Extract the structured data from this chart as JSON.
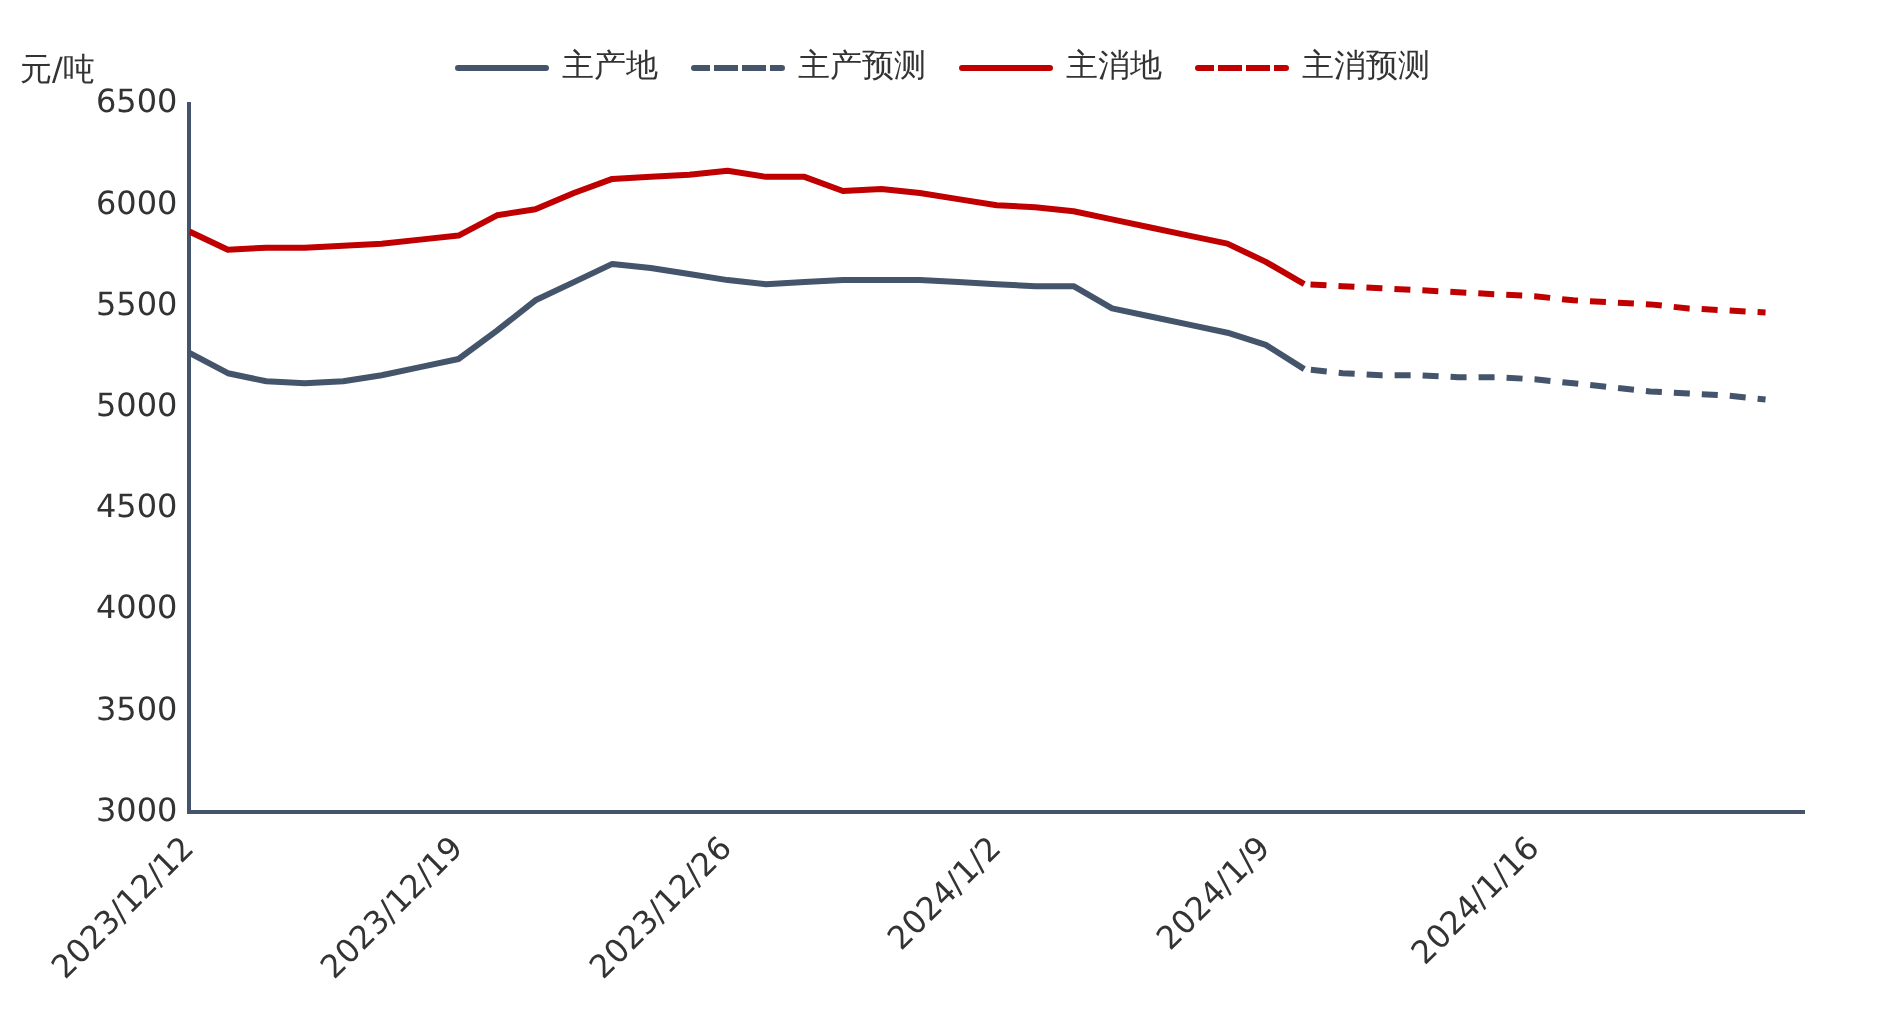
{
  "chart_data": {
    "type": "line",
    "ylabel": "元/吨",
    "legend": "top",
    "grid": false,
    "marker": "none",
    "xlim": [
      "2023-12-12",
      "2024-01-23"
    ],
    "xticks": [
      {
        "value": "2023-12-12",
        "label": "2023/12/12"
      },
      {
        "value": "2023-12-19",
        "label": "2023/12/19"
      },
      {
        "value": "2023-12-26",
        "label": "2023/12/26"
      },
      {
        "value": "2024-01-02",
        "label": "2024/1/2"
      },
      {
        "value": "2024-01-09",
        "label": "2024/1/9"
      },
      {
        "value": "2024-01-16",
        "label": "2024/1/16"
      }
    ],
    "ylim": [
      3000,
      6500
    ],
    "yticks": [
      3000,
      3500,
      4000,
      4500,
      5000,
      5500,
      6000,
      6500
    ],
    "series": [
      {
        "name": "主产地",
        "color": "#44546a",
        "line_style": "solid",
        "x": [
          "2023-12-12",
          "2023-12-13",
          "2023-12-14",
          "2023-12-15",
          "2023-12-16",
          "2023-12-17",
          "2023-12-18",
          "2023-12-19",
          "2023-12-20",
          "2023-12-21",
          "2023-12-22",
          "2023-12-23",
          "2023-12-24",
          "2023-12-25",
          "2023-12-26",
          "2023-12-27",
          "2023-12-28",
          "2023-12-29",
          "2023-12-30",
          "2023-12-31",
          "2024-01-01",
          "2024-01-02",
          "2024-01-03",
          "2024-01-04",
          "2024-01-05",
          "2024-01-06",
          "2024-01-07",
          "2024-01-08",
          "2024-01-09",
          "2024-01-10"
        ],
        "values": [
          5270,
          5170,
          5130,
          5120,
          5130,
          5160,
          5200,
          5240,
          5380,
          5530,
          5620,
          5710,
          5690,
          5660,
          5630,
          5610,
          5620,
          5630,
          5630,
          5630,
          5620,
          5610,
          5600,
          5600,
          5490,
          5450,
          5410,
          5370,
          5310,
          5190
        ]
      },
      {
        "name": "主产预测",
        "color": "#44546a",
        "line_style": "dashed",
        "x": [
          "2024-01-10",
          "2024-01-11",
          "2024-01-12",
          "2024-01-13",
          "2024-01-14",
          "2024-01-15",
          "2024-01-16",
          "2024-01-17",
          "2024-01-18",
          "2024-01-19",
          "2024-01-20",
          "2024-01-21",
          "2024-01-22"
        ],
        "values": [
          5190,
          5170,
          5160,
          5160,
          5150,
          5150,
          5140,
          5120,
          5100,
          5080,
          5070,
          5060,
          5040
        ]
      },
      {
        "name": "主消地",
        "color": "#c00000",
        "line_style": "solid",
        "x": [
          "2023-12-12",
          "2023-12-13",
          "2023-12-14",
          "2023-12-15",
          "2023-12-16",
          "2023-12-17",
          "2023-12-18",
          "2023-12-19",
          "2023-12-20",
          "2023-12-21",
          "2023-12-22",
          "2023-12-23",
          "2023-12-24",
          "2023-12-25",
          "2023-12-26",
          "2023-12-27",
          "2023-12-28",
          "2023-12-29",
          "2023-12-30",
          "2023-12-31",
          "2024-01-01",
          "2024-01-02",
          "2024-01-03",
          "2024-01-04",
          "2024-01-05",
          "2024-01-06",
          "2024-01-07",
          "2024-01-08",
          "2024-01-09",
          "2024-01-10"
        ],
        "values": [
          5870,
          5780,
          5790,
          5790,
          5800,
          5810,
          5830,
          5850,
          5950,
          5980,
          6060,
          6130,
          6140,
          6150,
          6170,
          6140,
          6140,
          6070,
          6080,
          6060,
          6030,
          6000,
          5990,
          5970,
          5930,
          5890,
          5850,
          5810,
          5720,
          5610
        ]
      },
      {
        "name": "主消预测",
        "color": "#c00000",
        "line_style": "dashed",
        "x": [
          "2024-01-10",
          "2024-01-11",
          "2024-01-12",
          "2024-01-13",
          "2024-01-14",
          "2024-01-15",
          "2024-01-16",
          "2024-01-17",
          "2024-01-18",
          "2024-01-19",
          "2024-01-20",
          "2024-01-21",
          "2024-01-22"
        ],
        "values": [
          5610,
          5600,
          5590,
          5580,
          5570,
          5560,
          5550,
          5530,
          5520,
          5510,
          5490,
          5480,
          5470
        ]
      }
    ]
  }
}
